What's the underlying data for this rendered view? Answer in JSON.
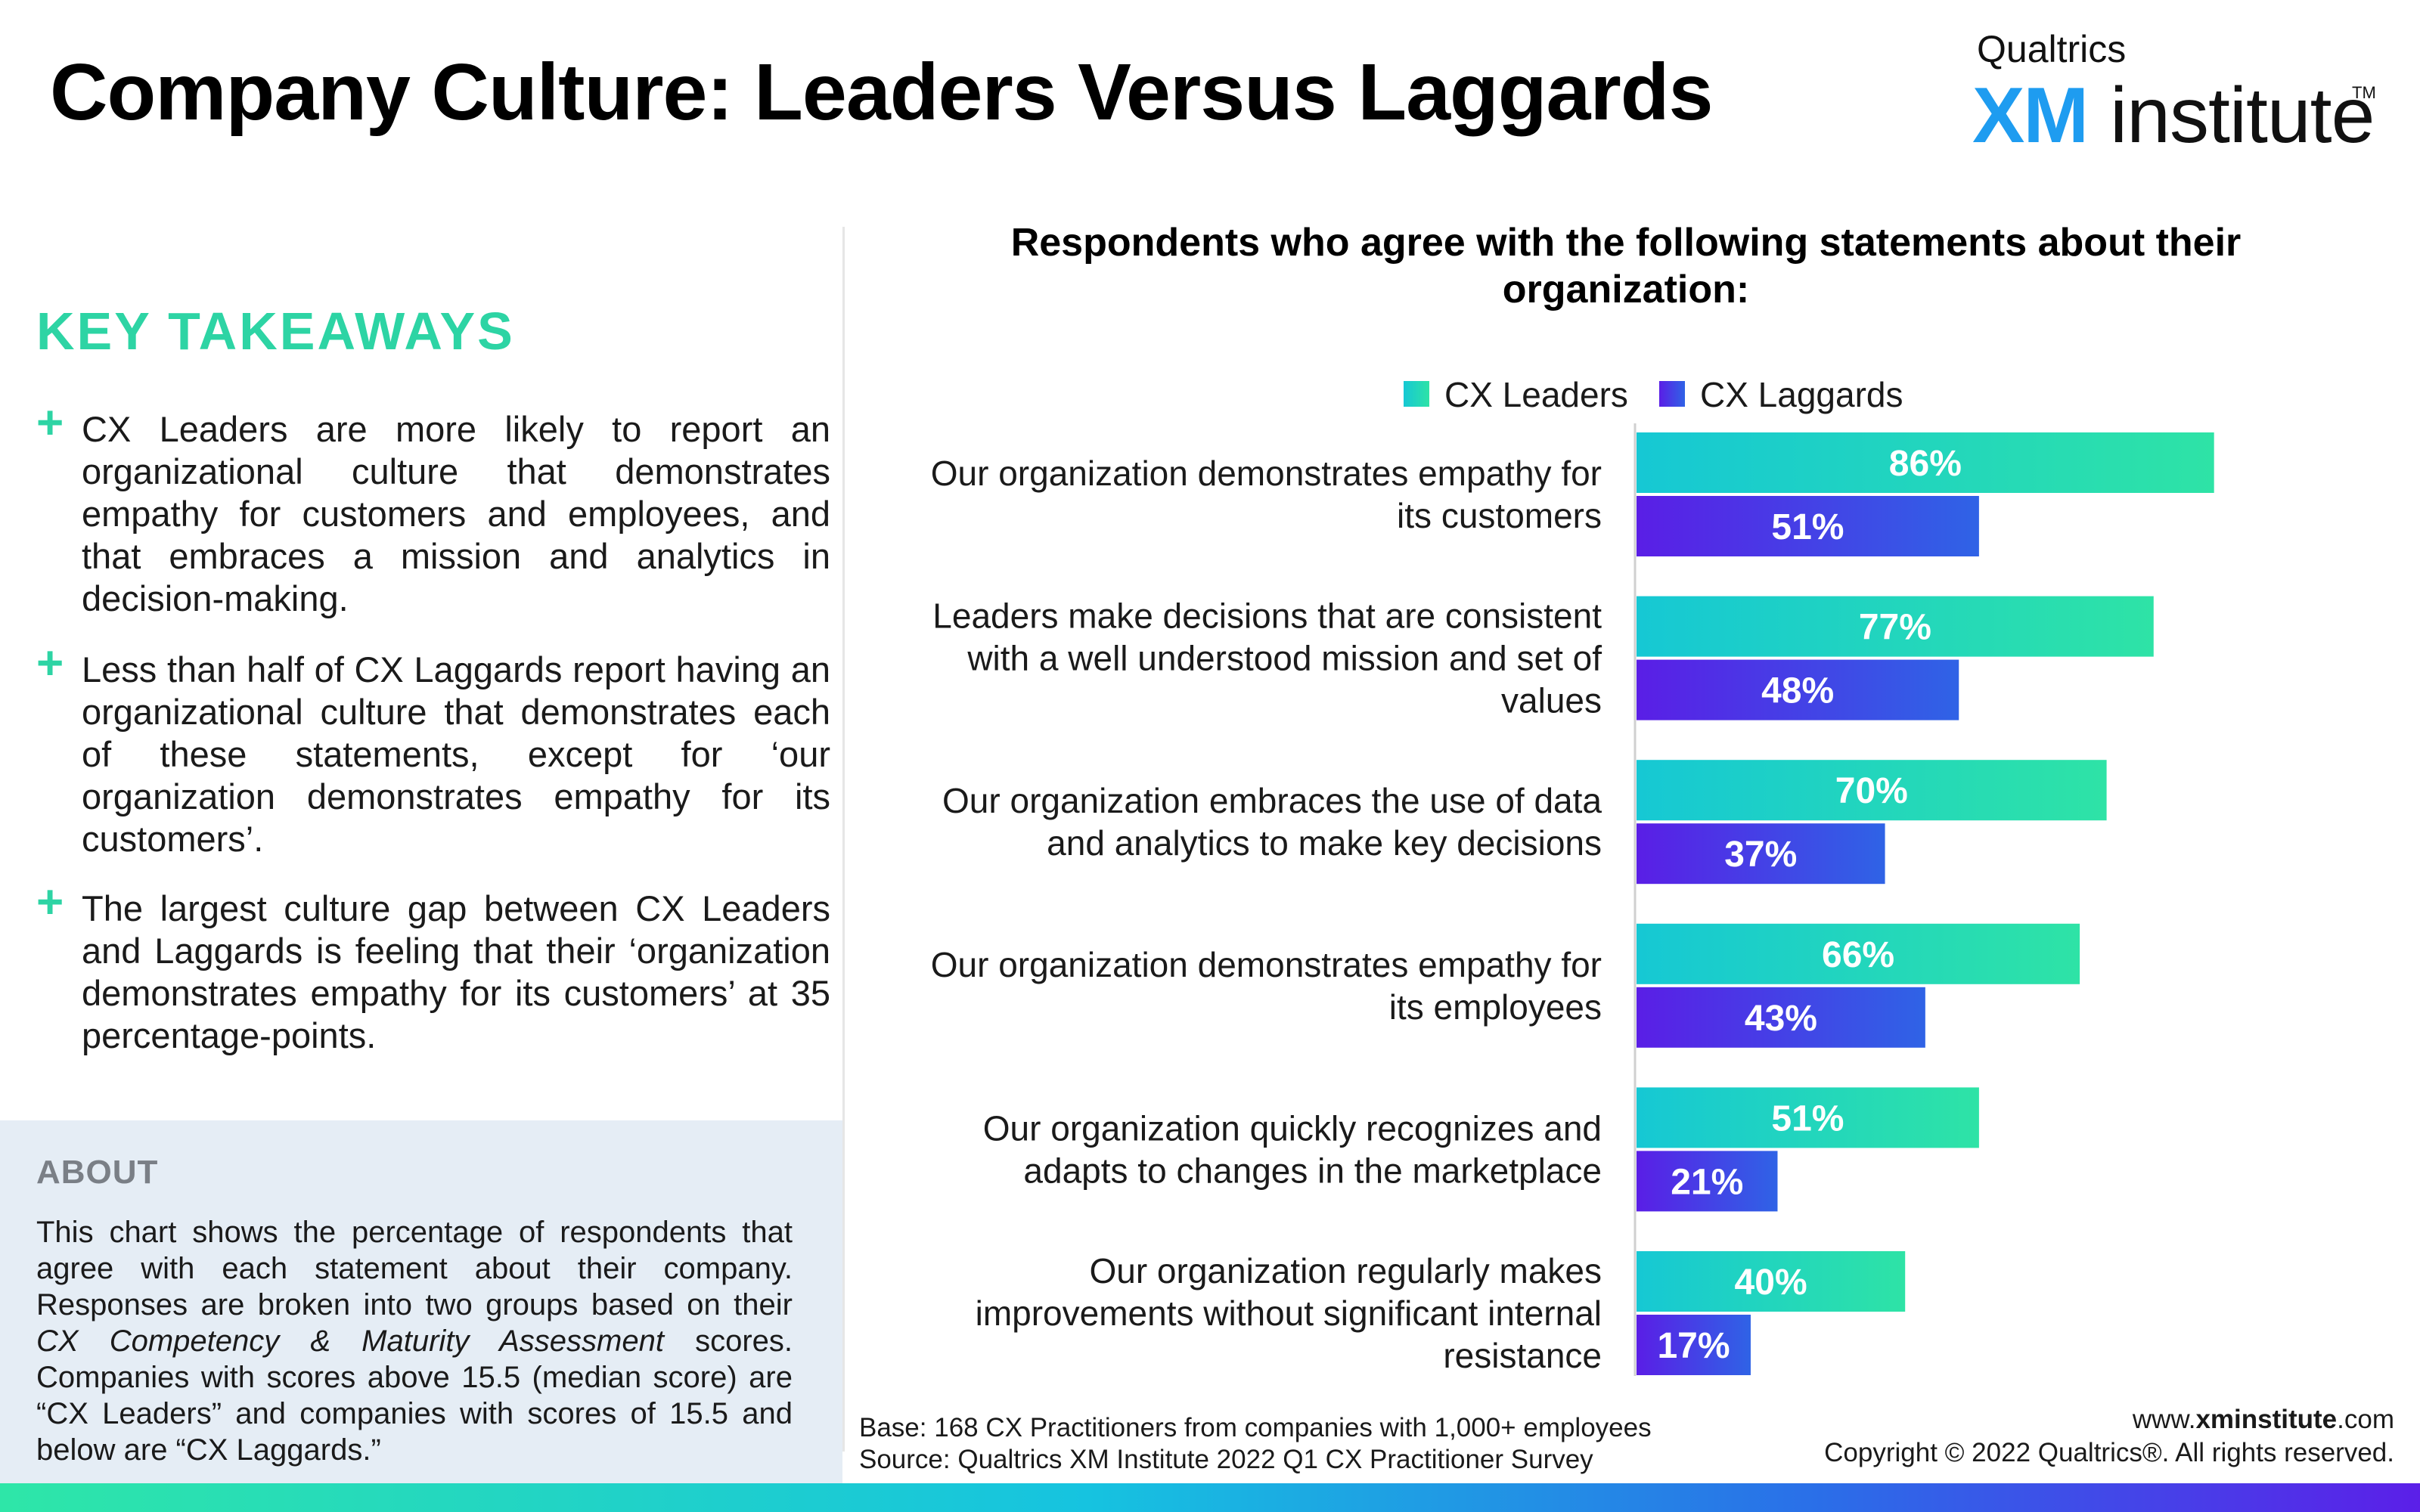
{
  "title": "Company Culture: Leaders Versus Laggards",
  "logo": {
    "top": "Qualtrics",
    "xm": "XM",
    "institute": "institute",
    "tm": "TM"
  },
  "key_takeaways": {
    "heading": "KEY TAKEAWAYS",
    "items": [
      "CX Leaders are more likely to report an organizational culture that demonstrates empathy for customers and employees, and that embraces a mission and analytics in decision-making.",
      "Less than half of CX Laggards report having an organizational culture that demonstrates each of these statements, except for ‘our organization demonstrates empathy for its customers’.",
      "The largest culture gap between CX Leaders and Laggards is feeling that their ‘organization demonstrates empathy for its customers’ at 35 percentage-points."
    ]
  },
  "about": {
    "heading": "ABOUT",
    "text_1": "This chart shows the percentage of respondents that agree with each statement about their company. Responses are broken into two groups based on their ",
    "text_italic": "CX Competency & Maturity Assessment",
    "text_2": " scores. Companies with scores above 15.5 (median score) are “CX Leaders” and companies with scores of 15.5 and below are “CX Laggards.”"
  },
  "footer": {
    "base": "Base: 168 CX Practitioners from companies with 1,000+ employees",
    "source": "Source: Qualtrics XM Institute 2022 Q1 CX Practitioner Survey",
    "site_pre": "www.",
    "site_bold": "xminstitute",
    "site_post": ".com",
    "copyright": "Copyright © 2022 Qualtrics®. All rights reserved."
  },
  "colors": {
    "leaders_start": "#16c8d4",
    "leaders_end": "#2ee3a6",
    "laggards_start": "#5a1ee6",
    "laggards_end": "#2f63e6",
    "accent": "#2dd4a4"
  },
  "chart_data": {
    "type": "bar",
    "orientation": "horizontal",
    "title": "Respondents who agree with the following statements about their organization:",
    "unit": "%",
    "xlim": [
      0,
      100
    ],
    "legend_position": "top",
    "categories": [
      "Our organization demonstrates empathy for its customers",
      "Leaders make decisions that are consistent with a well understood mission and set of values",
      "Our organization embraces the use of data and analytics to make key decisions",
      "Our organization demonstrates empathy for its employees",
      "Our organization quickly recognizes and adapts to changes in the marketplace",
      "Our organization regularly makes improvements without significant internal resistance"
    ],
    "series": [
      {
        "name": "CX Leaders",
        "values": [
          86,
          77,
          70,
          66,
          51,
          40
        ]
      },
      {
        "name": "CX Laggards",
        "values": [
          51,
          48,
          37,
          43,
          21,
          17
        ]
      }
    ]
  }
}
